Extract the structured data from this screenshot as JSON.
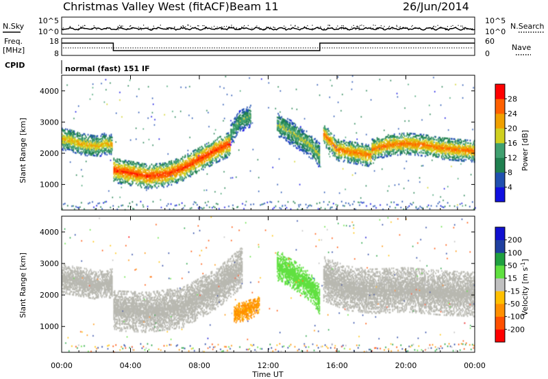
{
  "header": {
    "station": "Christmas Valley West (fitACF)",
    "beam": "Beam 11",
    "date": "26/Jun/2014"
  },
  "noise_panel": {
    "left_label": "N.Sky",
    "right_label": "N.Search",
    "left_ticks": [
      "10^5",
      "10^0"
    ],
    "right_ticks": [
      "10^5",
      "10^0"
    ]
  },
  "freq_panel": {
    "left_label_1": "Freq.",
    "left_label_2": "[MHz]",
    "right_label": "Nave",
    "left_ticks": [
      "18",
      "8"
    ],
    "right_ticks": [
      "60",
      "0"
    ]
  },
  "cpid": {
    "label": "CPID",
    "mode": "normal (fast) 151 IF"
  },
  "colors": {
    "power_scale": [
      "#1010e0",
      "#2050b0",
      "#208050",
      "#40a070",
      "#d0d020",
      "#f0a000",
      "#ff6000",
      "#ff0000"
    ],
    "velocity_scale": [
      "#ff0000",
      "#ff5000",
      "#ff9000",
      "#ffc000",
      "#c0c0c0",
      "#60e040",
      "#20a040",
      "#2040a0",
      "#1010d0"
    ],
    "ground_scatter": "#b8b8b0"
  },
  "chart_data": [
    {
      "type": "heatmap",
      "panel": "power",
      "ylabel": "Slant Range [km]",
      "yticks": [
        1000,
        2000,
        3000,
        4000
      ],
      "ylim": [
        180,
        4500
      ],
      "xlim": [
        0,
        24
      ],
      "colorbar": {
        "label": "Power [dB]",
        "ticks": [
          "4",
          "8",
          "12",
          "16",
          "20",
          "24",
          "28"
        ],
        "range": [
          0,
          30
        ]
      },
      "bands": [
        {
          "x": [
            0,
            0.5,
            1.0,
            1.5,
            2.0,
            2.5,
            2.9
          ],
          "center": [
            2450,
            2400,
            2300,
            2250,
            2200,
            2300,
            2250
          ],
          "width": 350,
          "peak": 20
        },
        {
          "x": [
            3.0,
            4.0,
            5.0,
            6.0,
            7.0,
            8.0,
            9.0,
            9.8
          ],
          "center": [
            1450,
            1350,
            1250,
            1300,
            1500,
            1800,
            2100,
            2300
          ],
          "width": 400,
          "peak": 27
        },
        {
          "x": [
            9.8,
            10.3,
            11.0
          ],
          "center": [
            2600,
            3000,
            3200
          ],
          "width": 350,
          "peak": 14
        },
        {
          "x": [
            12.5,
            13.5,
            14.5,
            15.0
          ],
          "center": [
            2900,
            2600,
            2200,
            1900
          ],
          "width": 400,
          "peak": 16
        },
        {
          "x": [
            15.2,
            16.0,
            17.0,
            18.0
          ],
          "center": [
            2600,
            2100,
            2000,
            1900
          ],
          "width": 350,
          "peak": 24
        },
        {
          "x": [
            18.0,
            19.0,
            20.0,
            21.0,
            22.0,
            23.0,
            24.0
          ],
          "center": [
            2100,
            2250,
            2300,
            2250,
            2150,
            2100,
            2050
          ],
          "width": 350,
          "peak": 24
        }
      ]
    },
    {
      "type": "heatmap",
      "panel": "velocity",
      "ylabel": "Slant Range [km]",
      "xlabel": "Time UT",
      "xticks": [
        "00:00",
        "04:00",
        "08:00",
        "12:00",
        "16:00",
        "20:00",
        "00:00"
      ],
      "yticks": [
        1000,
        2000,
        3000,
        4000
      ],
      "ylim": [
        180,
        4500
      ],
      "xlim": [
        0,
        24
      ],
      "colorbar": {
        "label": "Velocity [m s^-1]",
        "ticks": [
          "200",
          "100",
          "50",
          "15",
          "-15",
          "-50",
          "-100",
          "-200"
        ],
        "range": [
          -250,
          250
        ]
      },
      "bands": [
        {
          "x": [
            0,
            1.0,
            2.0,
            2.9
          ],
          "center": [
            2500,
            2400,
            2300,
            2350
          ],
          "width": 450,
          "velocity": 0
        },
        {
          "x": [
            3.0,
            5.0,
            7.0,
            9.0,
            10.5
          ],
          "center": [
            1500,
            1450,
            1600,
            2200,
            2900
          ],
          "width": 650,
          "velocity": 0
        },
        {
          "x": [
            10.0,
            10.5,
            11.0,
            11.5
          ],
          "center": [
            1400,
            1450,
            1550,
            1700
          ],
          "width": 300,
          "velocity": -60
        },
        {
          "x": [
            12.5,
            13.5,
            14.5,
            15.0
          ],
          "center": [
            2900,
            2600,
            2200,
            1800
          ],
          "width": 450,
          "velocity": 30
        },
        {
          "x": [
            15.2,
            16.5,
            18.0,
            20.0,
            22.0,
            24.0
          ],
          "center": [
            2500,
            2200,
            2100,
            2150,
            2050,
            2000
          ],
          "width": 700,
          "velocity": 0
        }
      ]
    }
  ]
}
